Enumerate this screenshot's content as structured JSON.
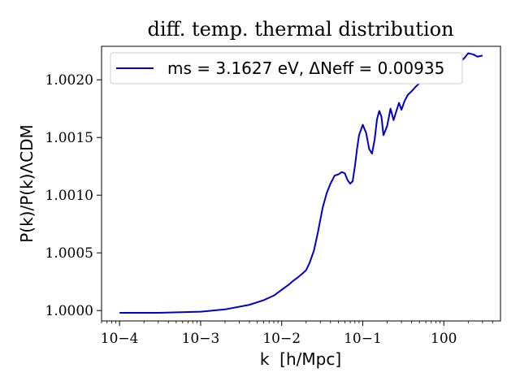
{
  "chart_data": {
    "type": "line",
    "title": "diff. temp. thermal distribution",
    "xlabel": "k  [h/Mpc]",
    "ylabel": "P(k)/P(k)ΛCDM",
    "xscale": "log",
    "xlim": [
      6e-05,
      5.0
    ],
    "ylim": [
      0.99991,
      1.00229
    ],
    "grid": false,
    "legend_position": "top",
    "x_ticks": [
      {
        "value": 0.0001,
        "label": "10−4"
      },
      {
        "value": 0.001,
        "label": "10−3"
      },
      {
        "value": 0.01,
        "label": "10−2"
      },
      {
        "value": 0.1,
        "label": "10−1"
      },
      {
        "value": 1,
        "label": "100"
      }
    ],
    "y_ticks": [
      {
        "value": 1.0,
        "label": "1.0000"
      },
      {
        "value": 1.0005,
        "label": "1.0005"
      },
      {
        "value": 1.001,
        "label": "1.0010"
      },
      {
        "value": 1.0015,
        "label": "1.0015"
      },
      {
        "value": 1.002,
        "label": "1.0020"
      }
    ],
    "series": [
      {
        "name": "ms = 3.1627 eV, ΔNeff = 0.00935",
        "color": "#0000cc",
        "x": [
          0.0001,
          0.0003,
          0.001,
          0.002,
          0.004,
          0.006,
          0.008,
          0.01,
          0.012,
          0.014,
          0.016,
          0.018,
          0.02,
          0.022,
          0.025,
          0.028,
          0.032,
          0.036,
          0.04,
          0.045,
          0.05,
          0.055,
          0.06,
          0.065,
          0.07,
          0.075,
          0.08,
          0.085,
          0.09,
          0.1,
          0.11,
          0.12,
          0.13,
          0.14,
          0.15,
          0.16,
          0.17,
          0.18,
          0.2,
          0.22,
          0.24,
          0.26,
          0.28,
          0.3,
          0.33,
          0.36,
          0.4,
          0.45,
          0.5,
          0.6,
          0.7,
          0.8,
          1.0,
          1.2,
          1.5,
          1.8,
          2.0,
          2.3,
          2.6,
          3.0
        ],
        "y": [
          0.99998,
          0.99998,
          0.99999,
          1.00001,
          1.00005,
          1.00009,
          1.00013,
          1.00018,
          1.00022,
          1.00026,
          1.00029,
          1.00032,
          1.00035,
          1.00041,
          1.00052,
          1.00068,
          1.00089,
          1.00102,
          1.0011,
          1.00117,
          1.00118,
          1.0012,
          1.00119,
          1.00113,
          1.0011,
          1.00112,
          1.00125,
          1.0014,
          1.00152,
          1.00161,
          1.00154,
          1.0014,
          1.00136,
          1.00148,
          1.00166,
          1.00173,
          1.00168,
          1.00152,
          1.0016,
          1.00175,
          1.00165,
          1.00173,
          1.0018,
          1.00174,
          1.00182,
          1.00187,
          1.0019,
          1.00194,
          1.00197,
          1.00201,
          1.00204,
          1.00206,
          1.00209,
          1.00211,
          1.00214,
          1.00219,
          1.00223,
          1.00222,
          1.0022,
          1.00221
        ]
      }
    ]
  }
}
